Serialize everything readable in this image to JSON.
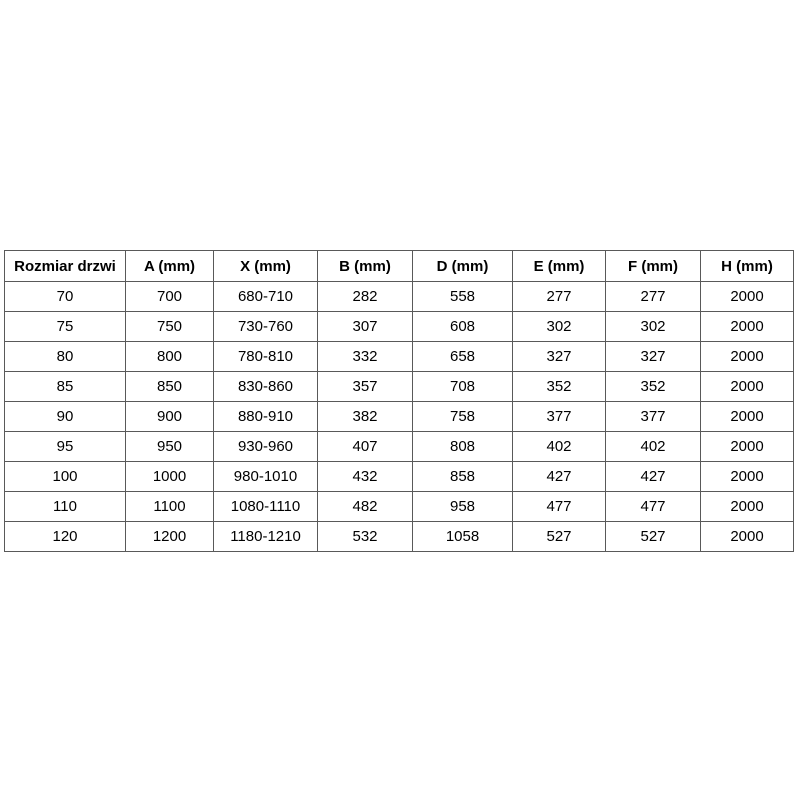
{
  "table": {
    "headers": [
      "Rozmiar drzwi",
      "A (mm)",
      "X (mm)",
      "B (mm)",
      "D (mm)",
      "E (mm)",
      "F (mm)",
      "H (mm)"
    ],
    "rows": [
      [
        "70",
        "700",
        "680-710",
        "282",
        "558",
        "277",
        "277",
        "2000"
      ],
      [
        "75",
        "750",
        "730-760",
        "307",
        "608",
        "302",
        "302",
        "2000"
      ],
      [
        "80",
        "800",
        "780-810",
        "332",
        "658",
        "327",
        "327",
        "2000"
      ],
      [
        "85",
        "850",
        "830-860",
        "357",
        "708",
        "352",
        "352",
        "2000"
      ],
      [
        "90",
        "900",
        "880-910",
        "382",
        "758",
        "377",
        "377",
        "2000"
      ],
      [
        "95",
        "950",
        "930-960",
        "407",
        "808",
        "402",
        "402",
        "2000"
      ],
      [
        "100",
        "1000",
        "980-1010",
        "432",
        "858",
        "427",
        "427",
        "2000"
      ],
      [
        "110",
        "1100",
        "1080-1110",
        "482",
        "958",
        "477",
        "477",
        "2000"
      ],
      [
        "120",
        "1200",
        "1180-1210",
        "532",
        "1058",
        "527",
        "527",
        "2000"
      ]
    ]
  },
  "colors": {
    "border": "#595959",
    "text": "#000000",
    "background": "#ffffff"
  }
}
